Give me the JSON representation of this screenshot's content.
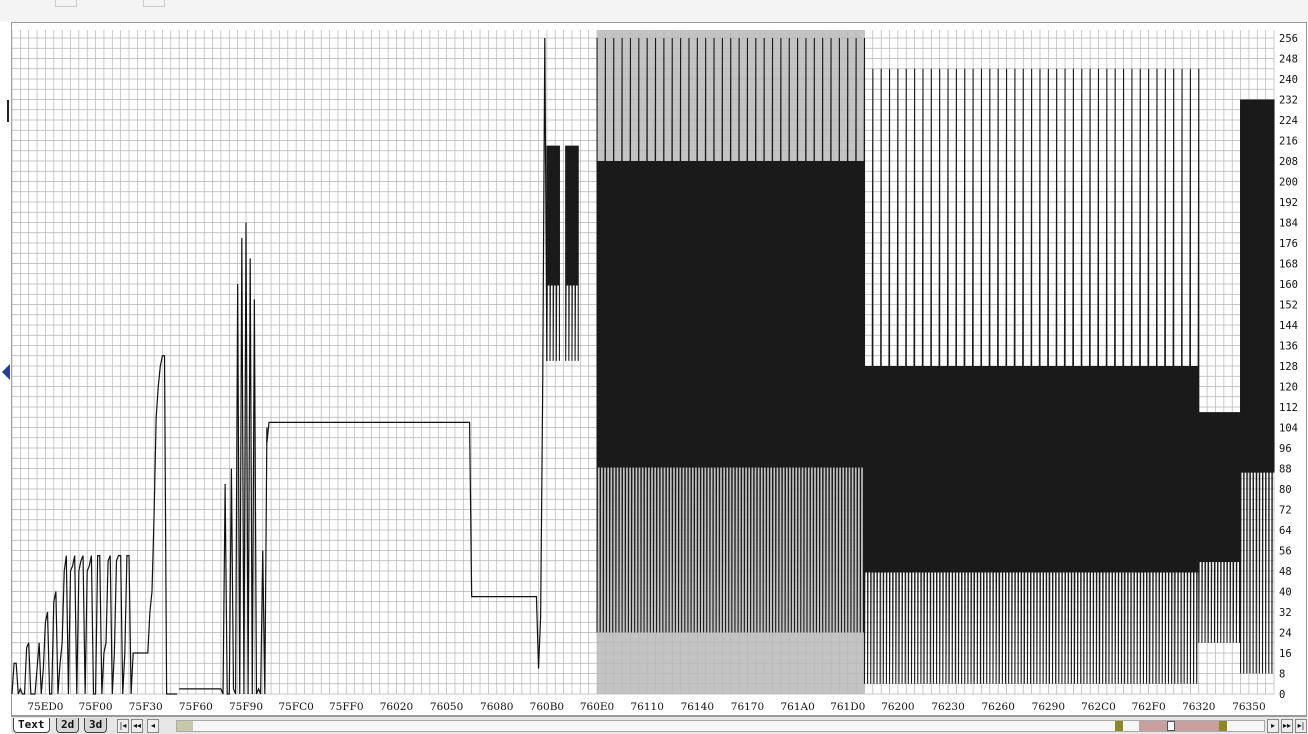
{
  "chart_data": {
    "type": "line",
    "title": "",
    "xlabel": "",
    "ylabel": "",
    "ylim": [
      0,
      256
    ],
    "xlim": [
      "75EB0",
      "76368"
    ],
    "y_ticks": [
      0,
      8,
      16,
      24,
      32,
      40,
      48,
      56,
      64,
      72,
      80,
      88,
      96,
      104,
      112,
      120,
      128,
      136,
      144,
      152,
      160,
      168,
      176,
      184,
      192,
      200,
      208,
      216,
      224,
      232,
      240,
      248,
      256
    ],
    "y_tick_labels": [
      "0",
      "8",
      "16",
      "24",
      "32",
      "40",
      "48",
      "56",
      "64",
      "72",
      "80",
      "88",
      "96",
      "104",
      "112",
      "120",
      "128",
      "136",
      "144",
      "152",
      "160",
      "168",
      "176",
      "184",
      "192",
      "200",
      "208",
      "216",
      "224",
      "232",
      "240",
      "248",
      "256"
    ],
    "x_tick_labels": [
      "75ED0",
      "75F00",
      "75F30",
      "75F60",
      "75F90",
      "75FC0",
      "75FF0",
      "76020",
      "76050",
      "76080",
      "760B0",
      "760E0",
      "76110",
      "76140",
      "76170",
      "761A0",
      "761D0",
      "76200",
      "76230",
      "76260",
      "76290",
      "762C0",
      "762F0",
      "76320",
      "76350"
    ],
    "grid": true,
    "legend": "none",
    "highlight_region": [
      "760E0",
      "761E0"
    ],
    "series": [
      {
        "color": "#111111",
        "segments": [
          {
            "x": [
              "75EB0",
              "75EB2",
              "75EB4",
              "75EB6",
              "75EB8",
              "75EBA",
              "75EBC",
              "75EBE",
              "75EC0",
              "75EC2",
              "75EC4",
              "75EC6",
              "75EC8",
              "75ECA",
              "75ECC",
              "75ECE",
              "75ED0",
              "75ED2",
              "75ED4",
              "75ED6",
              "75ED8",
              "75EDA",
              "75EDC",
              "75EDE",
              "75EE0",
              "75EE2",
              "75EE4",
              "75EE6",
              "75EE8",
              "75EEA",
              "75EEC",
              "75EEE",
              "75EF0",
              "75EF2",
              "75EF4",
              "75EF6",
              "75EF8",
              "75EFA",
              "75EFC",
              "75EFE",
              "75F00",
              "75F02",
              "75F04",
              "75F06",
              "75F08",
              "75F0A",
              "75F0C",
              "75F0E",
              "75F10",
              "75F12",
              "75F14",
              "75F16",
              "75F18",
              "75F1A",
              "75F1C",
              "75F1E",
              "75F20",
              "75F22",
              "75F24",
              "75F26",
              "75F28",
              "75F2A",
              "75F2C",
              "75F2E",
              "75F30",
              "75F32",
              "75F34",
              "75F36",
              "75F38",
              "75F3A",
              "75F3C",
              "75F3E",
              "75F40",
              "75F42",
              "75F44",
              "75F46",
              "75F48",
              "75F4A",
              "75F4C",
              "75F4E"
            ],
            "y": [
              0,
              12,
              12,
              0,
              2,
              0,
              0,
              18,
              20,
              0,
              0,
              0,
              10,
              20,
              0,
              10,
              28,
              32,
              0,
              0,
              36,
              40,
              0,
              12,
              20,
              48,
              54,
              0,
              48,
              50,
              54,
              0,
              48,
              52,
              54,
              0,
              48,
              50,
              54,
              0,
              0,
              54,
              54,
              0,
              16,
              20,
              52,
              54,
              0,
              16,
              52,
              54,
              54,
              0,
              16,
              54,
              54,
              0,
              16,
              16,
              16,
              16,
              16,
              16,
              16,
              16,
              32,
              40,
              70,
              108,
              120,
              128,
              132,
              132,
              0,
              0,
              0,
              0,
              0,
              0
            ]
          },
          {
            "x": [
              "75F50",
              "75F58",
              "75F60",
              "75F68",
              "75F70",
              "75F76",
              "75F78",
              "75F7A",
              "75F7C",
              "75F7E",
              "75F80",
              "75F82",
              "75F84",
              "75F86",
              "75F88",
              "75F8A",
              "75F8C",
              "75F8E",
              "75F90",
              "75F92",
              "75F94",
              "75F96",
              "75F98",
              "75F9A",
              "75F9C",
              "75F9E",
              "75FA0",
              "75FA2",
              "75FA4"
            ],
            "y": [
              2,
              2,
              2,
              2,
              2,
              2,
              2,
              0,
              82,
              0,
              0,
              88,
              2,
              0,
              160,
              0,
              178,
              0,
              184,
              0,
              170,
              0,
              154,
              0,
              2,
              0,
              56,
              0,
              104
            ]
          },
          {
            "x": [
              "75FA4",
              "75FA6",
              "75FA8",
              "75FB0",
              "75FC0",
              "75FD0",
              "75FE0",
              "75FF0",
              "76000",
              "76010",
              "76020",
              "76030",
              "76040",
              "76050",
              "76060",
              "76066",
              "76068",
              "7606A",
              "7606C",
              "76070",
              "76080",
              "76090",
              "760A0",
              "760A2",
              "760A4",
              "760A6",
              "760A8"
            ],
            "y": [
              98,
              106,
              106,
              106,
              106,
              106,
              106,
              106,
              106,
              106,
              106,
              106,
              106,
              106,
              106,
              106,
              38,
              38,
              38,
              38,
              38,
              38,
              38,
              38,
              38,
              38,
              10
            ]
          },
          {
            "x": [
              "760A8",
              "760AA",
              "760AC",
              "760AE",
              "760B0"
            ],
            "y": [
              10,
              30,
              120,
              256,
              130
            ]
          }
        ]
      }
    ],
    "bands": [
      {
        "x_start": "760B0",
        "x_end": "760BC",
        "low": 130,
        "high": 214
      },
      {
        "x_start": "760C2",
        "x_end": "760CE",
        "low": 130,
        "high": 214
      },
      {
        "x_start": "760E0",
        "x_end": "761E0",
        "low": 24,
        "high": 208,
        "spikes_high": 256
      },
      {
        "x_start": "761E0",
        "x_end": "76320",
        "low": 4,
        "high": 128,
        "spikes_high": 244
      },
      {
        "x_start": "76320",
        "x_end": "76348",
        "low": 20,
        "high": 110
      },
      {
        "x_start": "76348",
        "x_end": "76368",
        "low": 8,
        "high": 232
      }
    ]
  },
  "tabs": [
    {
      "label": "Text",
      "active": true
    },
    {
      "label": "2d",
      "active": false
    },
    {
      "label": "3d",
      "active": false
    }
  ],
  "nav": {
    "first": "|◂",
    "prev_page": "◂◂",
    "prev": "◂",
    "next": "▸",
    "next_page": "▸▸",
    "last": "▸|"
  }
}
